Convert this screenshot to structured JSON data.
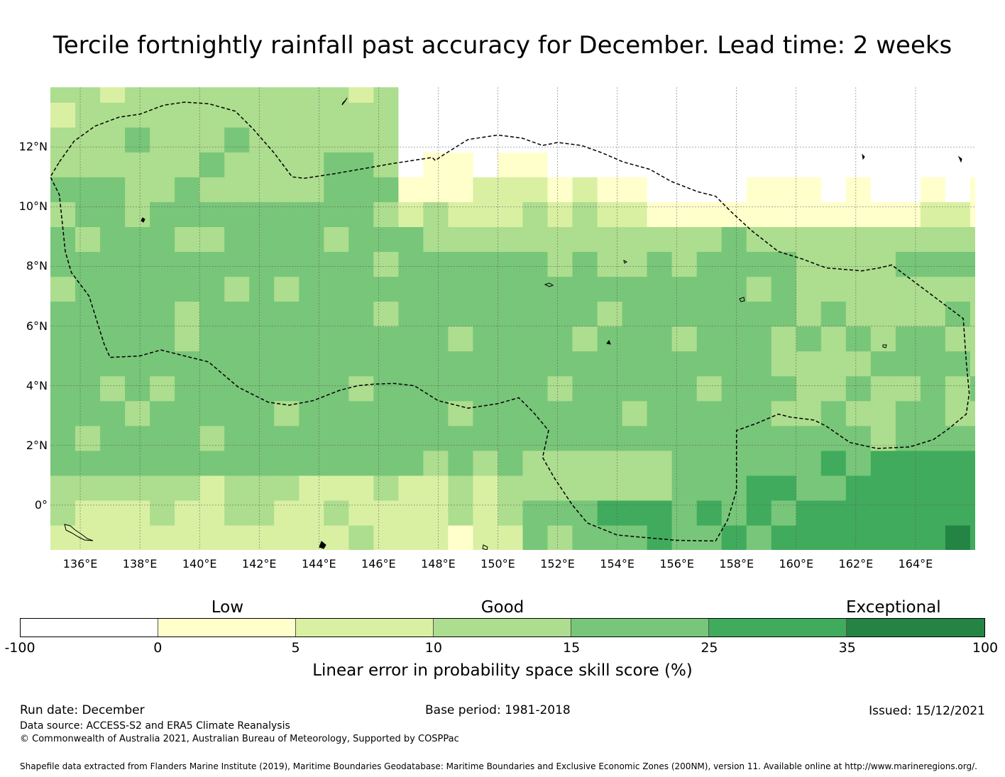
{
  "title": "Tercile fortnightly rainfall past accuracy for December. Lead time: 2 weeks",
  "map": {
    "lat_range": [
      -1.5,
      14
    ],
    "lon_range": [
      135,
      166
    ],
    "lat_ticks": [
      {
        "value": 12,
        "label": "12°N"
      },
      {
        "value": 10,
        "label": "10°N"
      },
      {
        "value": 8,
        "label": "8°N"
      },
      {
        "value": 6,
        "label": "6°N"
      },
      {
        "value": 4,
        "label": "4°N"
      },
      {
        "value": 2,
        "label": "2°N"
      },
      {
        "value": 0,
        "label": "0°"
      }
    ],
    "lon_ticks": [
      {
        "value": 136,
        "label": "136°E"
      },
      {
        "value": 138,
        "label": "138°E"
      },
      {
        "value": 140,
        "label": "140°E"
      },
      {
        "value": 142,
        "label": "142°E"
      },
      {
        "value": 144,
        "label": "144°E"
      },
      {
        "value": 146,
        "label": "146°E"
      },
      {
        "value": 148,
        "label": "148°E"
      },
      {
        "value": 150,
        "label": "150°E"
      },
      {
        "value": 152,
        "label": "152°E"
      },
      {
        "value": 154,
        "label": "154°E"
      },
      {
        "value": 156,
        "label": "156°E"
      },
      {
        "value": 158,
        "label": "158°E"
      },
      {
        "value": 160,
        "label": "160°E"
      },
      {
        "value": 162,
        "label": "162°E"
      },
      {
        "value": 164,
        "label": "164°E"
      }
    ],
    "eez_boundary": [
      [
        135.3,
        11.5
      ],
      [
        135.8,
        12.2
      ],
      [
        136.5,
        12.7
      ],
      [
        137.3,
        13.0
      ],
      [
        138.0,
        13.1
      ],
      [
        138.8,
        13.4
      ],
      [
        139.5,
        13.5
      ],
      [
        140.3,
        13.45
      ],
      [
        141.2,
        13.2
      ],
      [
        141.8,
        12.6
      ],
      [
        142.5,
        11.8
      ],
      [
        143.1,
        11.0
      ],
      [
        143.5,
        10.95
      ],
      [
        144.5,
        11.1
      ],
      [
        146.5,
        11.45
      ],
      [
        147.8,
        11.65
      ],
      [
        147.9,
        11.55
      ],
      [
        148.2,
        11.75
      ],
      [
        149.0,
        12.25
      ],
      [
        150.0,
        12.4
      ],
      [
        150.8,
        12.3
      ],
      [
        151.5,
        12.05
      ],
      [
        152.0,
        12.15
      ],
      [
        152.8,
        12.05
      ],
      [
        153.5,
        11.8
      ],
      [
        154.2,
        11.5
      ],
      [
        155.1,
        11.25
      ],
      [
        155.8,
        10.85
      ],
      [
        156.7,
        10.5
      ],
      [
        157.3,
        10.35
      ],
      [
        157.8,
        9.85
      ],
      [
        158.5,
        9.2
      ],
      [
        159.4,
        8.5
      ],
      [
        160.2,
        8.25
      ],
      [
        161.0,
        7.95
      ],
      [
        162.2,
        7.85
      ],
      [
        162.8,
        7.95
      ],
      [
        163.2,
        8.05
      ],
      [
        164.0,
        7.45
      ],
      [
        164.8,
        6.85
      ],
      [
        165.6,
        6.25
      ],
      [
        165.7,
        4.8
      ],
      [
        165.8,
        3.75
      ],
      [
        165.7,
        3.05
      ],
      [
        165.1,
        2.55
      ],
      [
        164.6,
        2.2
      ],
      [
        163.8,
        1.95
      ],
      [
        162.7,
        1.9
      ],
      [
        161.8,
        2.1
      ],
      [
        161.0,
        2.65
      ],
      [
        160.6,
        2.85
      ],
      [
        159.8,
        2.95
      ],
      [
        159.4,
        3.05
      ],
      [
        158.7,
        2.75
      ],
      [
        158.0,
        2.5
      ],
      [
        158.0,
        0.5
      ],
      [
        157.7,
        -0.5
      ],
      [
        157.3,
        -1.2
      ],
      [
        156.0,
        -1.18
      ],
      [
        154.0,
        -1.0
      ],
      [
        153.0,
        -0.6
      ],
      [
        152.5,
        0.0
      ],
      [
        151.9,
        0.9
      ],
      [
        151.5,
        1.6
      ],
      [
        151.7,
        2.5
      ],
      [
        151.2,
        3.1
      ],
      [
        150.7,
        3.6
      ],
      [
        150.0,
        3.4
      ],
      [
        149.0,
        3.25
      ],
      [
        148.0,
        3.5
      ],
      [
        147.2,
        4.0
      ],
      [
        146.5,
        4.08
      ],
      [
        145.8,
        4.05
      ],
      [
        145.3,
        4.0
      ],
      [
        144.7,
        3.85
      ],
      [
        143.8,
        3.5
      ],
      [
        143.0,
        3.35
      ],
      [
        142.3,
        3.45
      ],
      [
        141.3,
        3.95
      ],
      [
        140.3,
        4.8
      ],
      [
        139.5,
        5.0
      ],
      [
        138.7,
        5.2
      ],
      [
        138.0,
        5.0
      ],
      [
        137.0,
        4.95
      ],
      [
        136.8,
        5.4
      ],
      [
        136.3,
        7.0
      ],
      [
        135.7,
        7.8
      ],
      [
        135.5,
        8.5
      ],
      [
        135.3,
        10.4
      ],
      [
        135.0,
        11.0
      ]
    ]
  },
  "colorbar": {
    "categories": [
      {
        "label": "Low",
        "position": 0.215
      },
      {
        "label": "Good",
        "position": 0.5
      },
      {
        "label": "Exceptional",
        "position": 0.905
      }
    ],
    "bins": [
      {
        "from": -100,
        "to": 0,
        "color": "#ffffff"
      },
      {
        "from": 0,
        "to": 5,
        "color": "#ffffcc"
      },
      {
        "from": 5,
        "to": 10,
        "color": "#d9f0a3"
      },
      {
        "from": 10,
        "to": 15,
        "color": "#addd8e"
      },
      {
        "from": 15,
        "to": 25,
        "color": "#78c679"
      },
      {
        "from": 25,
        "to": 35,
        "color": "#41ab5d"
      },
      {
        "from": 35,
        "to": 100,
        "color": "#238443"
      }
    ],
    "tick_labels": [
      "-100",
      "0",
      "5",
      "10",
      "15",
      "25",
      "35",
      "100"
    ],
    "title": "Linear error in probability space skill score (%)"
  },
  "footer": {
    "run_date": "Run date: December",
    "base_period": "Base period: 1981-2018",
    "issued": "Issued: 15/12/2021",
    "data_source": "Data source: ACCESS-S2 and ERA5 Climate Reanalysis",
    "copyright": "© Commonwealth of Australia 2021, Australian Bureau of Meteorology, Supported by COSPPac",
    "shapefile": "Shapefile data extracted from Flanders Marine Institute (2019), Maritime Boundaries Geodatabase: Maritime Boundaries and Exclusive Economic Zones (200NM), version 11. Available online at http://www.marineregions.org/."
  }
}
